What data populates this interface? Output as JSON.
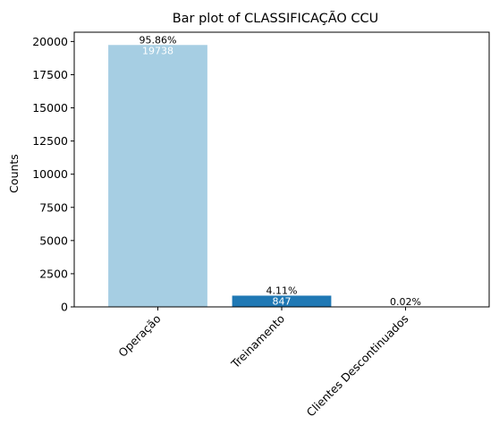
{
  "chart_data": {
    "type": "bar",
    "title": "Bar plot of CLASSIFICAÇÃO CCU",
    "xlabel": "",
    "ylabel": "Counts",
    "categories": [
      "Operação",
      "Treinamento",
      "Clientes Descontinuados"
    ],
    "values": [
      19738,
      847,
      4
    ],
    "percent_labels": [
      "95.86%",
      "4.11%",
      "0.02%"
    ],
    "count_labels": [
      "19738",
      "847",
      ""
    ],
    "colors": [
      "#a6cee3",
      "#1f78b4",
      "#b2df8a"
    ],
    "ylim": [
      0,
      20700
    ],
    "yticks": [
      0,
      2500,
      5000,
      7500,
      10000,
      12500,
      15000,
      17500,
      20000
    ],
    "ytick_labels": [
      "0",
      "2500",
      "5000",
      "7500",
      "10000",
      "12500",
      "15000",
      "17500",
      "20000"
    ],
    "grid": false,
    "legend": "none"
  }
}
